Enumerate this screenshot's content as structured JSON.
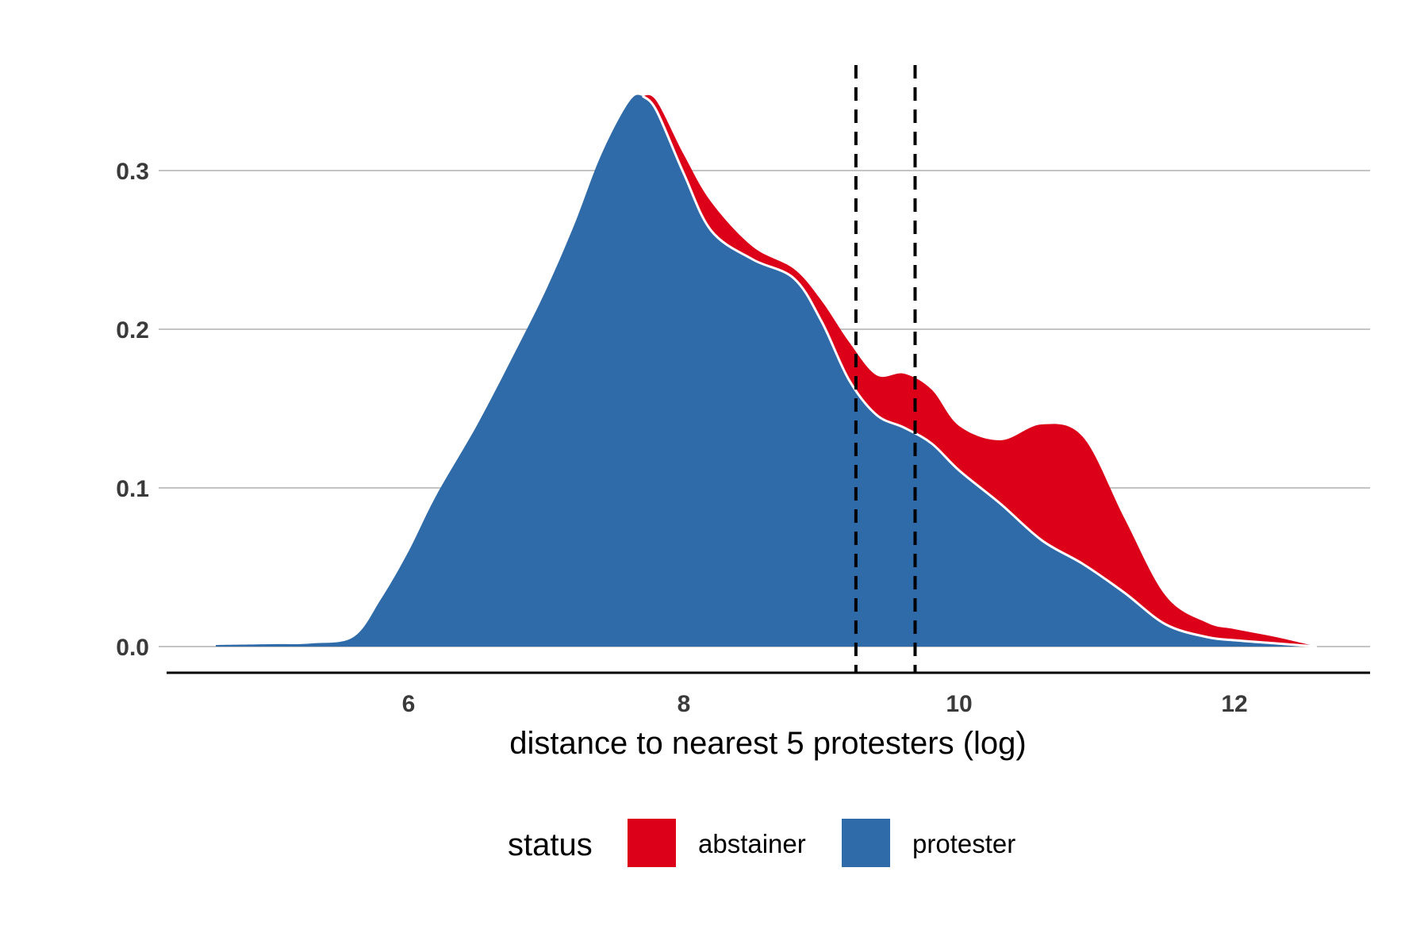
{
  "chart_data": {
    "type": "area",
    "stacked": true,
    "xlabel": "distance to nearest 5 protesters (log)",
    "ylabel": "",
    "xlim": [
      4.6,
      12.8
    ],
    "ylim": [
      0.0,
      0.36
    ],
    "x_ticks": [
      6,
      8,
      10,
      12
    ],
    "y_ticks": [
      0.0,
      0.1,
      0.2,
      0.3
    ],
    "x_tick_labels": [
      "6",
      "8",
      "10",
      "12"
    ],
    "y_tick_labels": [
      "0.0",
      "0.1",
      "0.2",
      "0.3"
    ],
    "grid": "horizontal",
    "legend": {
      "title": "status",
      "position": "bottom",
      "entries": [
        {
          "label": "abstainer",
          "color": "#DC0019"
        },
        {
          "label": "protester",
          "color": "#2F6AA9"
        }
      ]
    },
    "vlines": [
      9.25,
      9.68
    ],
    "series": [
      {
        "name": "protester",
        "color": "#2F6AA9",
        "x": [
          4.6,
          5.0,
          5.3,
          5.6,
          5.8,
          6.0,
          6.2,
          6.5,
          6.8,
          7.0,
          7.2,
          7.4,
          7.6,
          7.7,
          7.8,
          8.0,
          8.2,
          8.5,
          8.8,
          9.0,
          9.2,
          9.4,
          9.6,
          9.8,
          10.0,
          10.3,
          10.6,
          10.9,
          11.2,
          11.5,
          11.8,
          12.0,
          12.3,
          12.6
        ],
        "values": [
          0.001,
          0.0015,
          0.002,
          0.006,
          0.03,
          0.06,
          0.095,
          0.14,
          0.19,
          0.225,
          0.265,
          0.31,
          0.343,
          0.347,
          0.338,
          0.298,
          0.262,
          0.244,
          0.232,
          0.205,
          0.168,
          0.146,
          0.138,
          0.128,
          0.111,
          0.09,
          0.067,
          0.052,
          0.034,
          0.014,
          0.006,
          0.004,
          0.002,
          0.0
        ]
      },
      {
        "name": "abstainer",
        "color": "#DC0019",
        "x": [
          4.6,
          5.0,
          5.3,
          5.6,
          5.8,
          6.0,
          6.2,
          6.5,
          6.8,
          7.0,
          7.2,
          7.4,
          7.6,
          7.7,
          7.8,
          8.0,
          8.2,
          8.5,
          8.8,
          9.0,
          9.2,
          9.4,
          9.6,
          9.8,
          10.0,
          10.3,
          10.6,
          10.9,
          11.2,
          11.5,
          11.8,
          12.0,
          12.3,
          12.6
        ],
        "values": [
          0.0,
          0.0,
          0.0,
          0.0,
          0.0,
          0.0,
          0.0,
          0.0,
          0.0,
          0.0,
          0.0,
          0.0,
          0.0,
          0.0,
          0.006,
          0.012,
          0.018,
          0.008,
          0.006,
          0.013,
          0.024,
          0.025,
          0.034,
          0.034,
          0.028,
          0.04,
          0.073,
          0.08,
          0.047,
          0.018,
          0.009,
          0.007,
          0.004,
          0.0
        ]
      }
    ]
  }
}
